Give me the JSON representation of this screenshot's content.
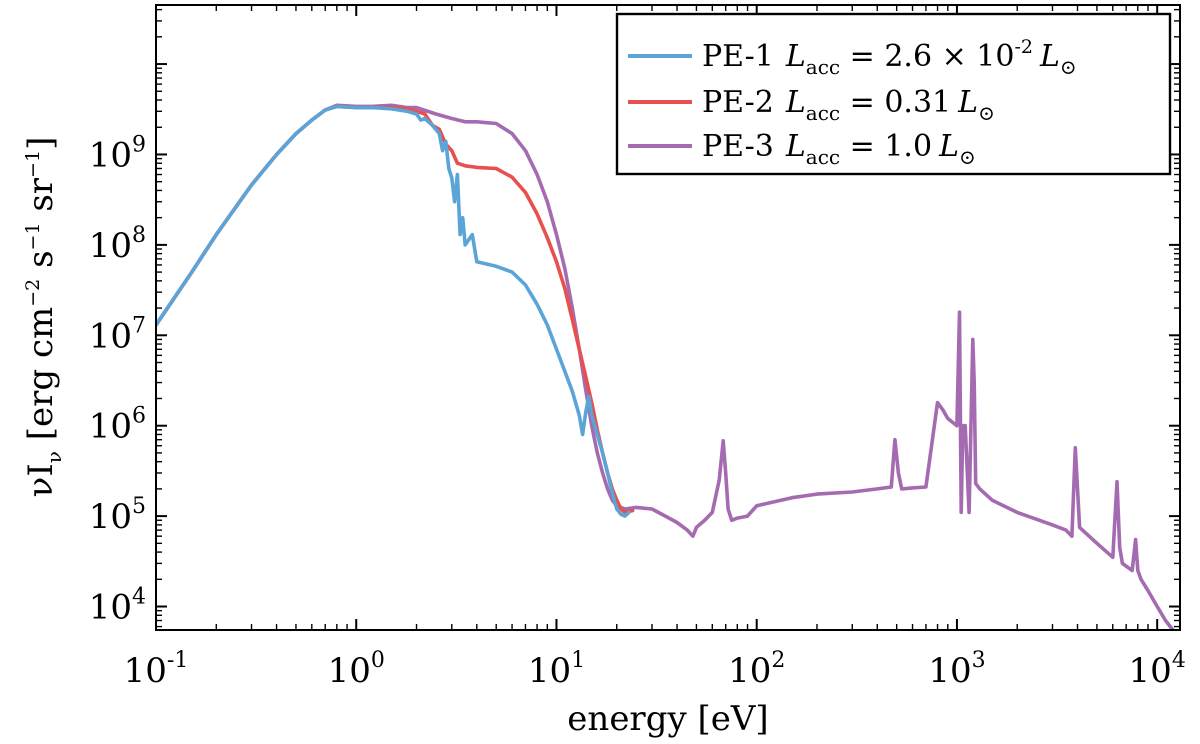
{
  "chart_data": {
    "type": "line",
    "title": "",
    "xlabel": "energy [eV]",
    "ylabel": {
      "main": "νI",
      "sub": "ν",
      "unit_open": " [erg cm",
      "unit_exp1": "−2",
      "unit_mid1": " s",
      "unit_exp2": "−1",
      "unit_mid2": " sr",
      "unit_exp3": "−1",
      "unit_close": "]"
    },
    "x_scale": "log",
    "y_scale": "log",
    "xlim": [
      0.1,
      13000
    ],
    "ylim": [
      5500,
      45000000000
    ],
    "grid": false,
    "legend_position": "top-right",
    "x_ticks": [
      {
        "value": 0.1,
        "base": "10",
        "exp": "-1"
      },
      {
        "value": 1,
        "base": "10",
        "exp": "0"
      },
      {
        "value": 10,
        "base": "10",
        "exp": "1"
      },
      {
        "value": 100,
        "base": "10",
        "exp": "2"
      },
      {
        "value": 1000,
        "base": "10",
        "exp": "3"
      },
      {
        "value": 10000,
        "base": "10",
        "exp": "4"
      }
    ],
    "y_ticks": [
      {
        "value": 10000,
        "base": "10",
        "exp": "4"
      },
      {
        "value": 100000,
        "base": "10",
        "exp": "5"
      },
      {
        "value": 1000000,
        "base": "10",
        "exp": "6"
      },
      {
        "value": 10000000,
        "base": "10",
        "exp": "7"
      },
      {
        "value": 100000000,
        "base": "10",
        "exp": "8"
      },
      {
        "value": 1000000000,
        "base": "10",
        "exp": "9"
      }
    ],
    "series": [
      {
        "name": "PE-1",
        "legend": {
          "lum_sub": "acc",
          "value": "2.6 × 10",
          "value_exp": "-2",
          "unit": "L",
          "unit_sub": "⊙"
        },
        "color": "#5aa4d8",
        "x": [
          0.1,
          0.15,
          0.2,
          0.3,
          0.4,
          0.5,
          0.6,
          0.7,
          0.8,
          1.0,
          1.2,
          1.5,
          1.8,
          2.0,
          2.1,
          2.2,
          2.4,
          2.6,
          2.7,
          2.8,
          2.9,
          3.0,
          3.1,
          3.2,
          3.3,
          3.4,
          3.5,
          3.8,
          4.0,
          5.0,
          6.0,
          7.0,
          8.0,
          9.0,
          10.0,
          11.0,
          12.0,
          13.0,
          13.5,
          14.0,
          14.5,
          15.0,
          16.0,
          17.0,
          18.0,
          19.0,
          20.0,
          21.0,
          22.0,
          23.0
        ],
        "y": [
          13000000,
          49000000,
          130000000,
          460000000,
          1000000000,
          1700000000,
          2400000000,
          3100000000,
          3400000000,
          3300000000,
          3300000000,
          3200000000,
          3000000000,
          2800000000,
          2400000000,
          2500000000,
          2100000000,
          1700000000,
          1100000000,
          1400000000,
          700000000,
          550000000,
          300000000,
          600000000,
          130000000,
          200000000,
          100000000,
          130000000,
          65000000,
          58000000,
          50000000,
          36000000,
          22000000,
          13000000,
          7000000,
          4000000,
          2400000,
          1300000,
          800000,
          1400000,
          2100000,
          1300000,
          800000,
          500000,
          300000,
          180000,
          120000,
          105000,
          100000,
          110000
        ]
      },
      {
        "name": "PE-2",
        "legend": {
          "lum_sub": "acc",
          "value": "0.31",
          "value_exp": "",
          "unit": "L",
          "unit_sub": "⊙"
        },
        "color": "#e8504f",
        "x": [
          0.1,
          0.15,
          0.2,
          0.3,
          0.4,
          0.5,
          0.6,
          0.7,
          0.8,
          1.0,
          1.2,
          1.5,
          1.8,
          2.0,
          2.2,
          2.4,
          2.6,
          2.8,
          3.0,
          3.2,
          3.5,
          4.0,
          5.0,
          6.0,
          7.0,
          8.0,
          9.0,
          10.0,
          11.0,
          12.0,
          13.0,
          14.0,
          15.0,
          16.0,
          17.0,
          18.0,
          19.0,
          20.0,
          21.0,
          22.0,
          24.0
        ],
        "y": [
          13000000,
          49000000,
          130000000,
          460000000,
          1000000000,
          1700000000,
          2400000000,
          3100000000,
          3400000000,
          3300000000,
          3300000000,
          3300000000,
          3200000000,
          3000000000,
          2800000000,
          2100000000,
          1900000000,
          1300000000,
          1100000000,
          800000000,
          750000000,
          720000000,
          700000000,
          560000000,
          380000000,
          220000000,
          120000000,
          65000000,
          33000000,
          15000000,
          7000000,
          3500000,
          1800000,
          900000,
          500000,
          300000,
          200000,
          150000,
          120000,
          110000,
          115000
        ]
      },
      {
        "name": "PE-3",
        "legend": {
          "lum_sub": "acc",
          "value": "1.0",
          "value_exp": "",
          "unit": "L",
          "unit_sub": "⊙"
        },
        "color": "#a56bb1",
        "x": [
          0.1,
          0.15,
          0.2,
          0.3,
          0.4,
          0.5,
          0.6,
          0.7,
          0.8,
          1.0,
          1.2,
          1.5,
          1.8,
          2.0,
          2.5,
          3.0,
          3.5,
          4.0,
          5.0,
          6.0,
          7.0,
          8.0,
          9.0,
          10.0,
          11.0,
          12.0,
          13.0,
          14.0,
          15.0,
          16.0,
          17.0,
          18.0,
          19.0,
          20.0,
          22.0,
          25.0,
          30.0,
          35.0,
          40.0,
          45.0,
          48.0,
          50.0,
          55.0,
          60.0,
          65.0,
          68.0,
          70.0,
          72.0,
          75.0,
          80.0,
          90.0,
          100.0,
          150.0,
          200.0,
          300.0,
          400.0,
          470.0,
          490.0,
          510.0,
          530.0,
          600.0,
          700.0,
          800.0,
          850.0,
          900.0,
          1000.0,
          1030.0,
          1050.0,
          1070.0,
          1100.0,
          1150.0,
          1200.0,
          1220.0,
          1240.0,
          1300.0,
          1500.0,
          2000.0,
          3000.0,
          3500.0,
          3750.0,
          3900.0,
          4100.0,
          5000.0,
          6000.0,
          6300.0,
          6500.0,
          6700.0,
          7500.0,
          7800.0,
          8000.0,
          8300.0,
          9000.0,
          10000.0,
          11000.0,
          12000.0
        ],
        "y": [
          13000000,
          49000000,
          130000000,
          460000000,
          1000000000,
          1700000000,
          2400000000,
          3100000000,
          3500000000,
          3400000000,
          3400000000,
          3500000000,
          3300000000,
          3300000000,
          2800000000,
          2500000000,
          2300000000,
          2300000000,
          2200000000,
          1700000000,
          1100000000,
          600000000,
          300000000,
          130000000,
          55000000,
          20000000,
          7000000,
          2500000,
          1000000,
          500000,
          300000,
          200000,
          150000,
          130000,
          120000,
          125000,
          120000,
          100000,
          85000,
          70000,
          60000,
          75000,
          90000,
          110000,
          250000,
          680000,
          300000,
          120000,
          90000,
          95000,
          100000,
          130000,
          160000,
          175000,
          185000,
          200000,
          210000,
          700000,
          300000,
          200000,
          205000,
          210000,
          1800000,
          1500000,
          1200000,
          1000000,
          18000000,
          110000,
          1000000,
          1000000,
          110000,
          9000000,
          3000000,
          230000,
          200000,
          150000,
          110000,
          80000,
          70000,
          60000,
          570000,
          75000,
          50000,
          35000,
          240000,
          45000,
          30000,
          25000,
          55000,
          25000,
          20000,
          15000,
          10000,
          7000,
          5500
        ]
      }
    ]
  }
}
